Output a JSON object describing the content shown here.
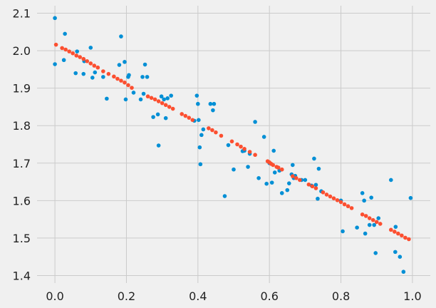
{
  "chart_data": {
    "type": "scatter",
    "title": "",
    "xlabel": "",
    "ylabel": "",
    "xlim": [
      -0.05,
      1.05
    ],
    "ylim": [
      1.38,
      2.12
    ],
    "grid": true,
    "x_ticks": [
      0.0,
      0.2,
      0.4,
      0.6,
      0.8,
      1.0
    ],
    "x_tick_labels": [
      "0.0",
      "0.2",
      "0.4",
      "0.6",
      "0.8",
      "1.0"
    ],
    "y_ticks": [
      1.4,
      1.5,
      1.6,
      1.7,
      1.8,
      1.9,
      2.0,
      2.1
    ],
    "y_tick_labels": [
      "1.4",
      "1.5",
      "1.6",
      "1.7",
      "1.8",
      "1.9",
      "2.0",
      "2.1"
    ],
    "series": [
      {
        "color": "#008fd5",
        "points": [
          [
            0.0,
            2.087
          ],
          [
            0.0,
            1.964
          ],
          [
            0.025,
            1.975
          ],
          [
            0.028,
            2.045
          ],
          [
            0.058,
            1.94
          ],
          [
            0.062,
            1.998
          ],
          [
            0.08,
            1.938
          ],
          [
            0.082,
            1.972
          ],
          [
            0.1,
            2.008
          ],
          [
            0.105,
            1.928
          ],
          [
            0.112,
            1.942
          ],
          [
            0.135,
            1.93
          ],
          [
            0.145,
            1.872
          ],
          [
            0.18,
            1.962
          ],
          [
            0.185,
            2.038
          ],
          [
            0.195,
            1.97
          ],
          [
            0.198,
            1.87
          ],
          [
            0.205,
            1.93
          ],
          [
            0.207,
            1.935
          ],
          [
            0.22,
            1.888
          ],
          [
            0.24,
            1.87
          ],
          [
            0.245,
            1.93
          ],
          [
            0.248,
            1.885
          ],
          [
            0.252,
            1.963
          ],
          [
            0.258,
            1.93
          ],
          [
            0.275,
            1.823
          ],
          [
            0.288,
            1.83
          ],
          [
            0.29,
            1.747
          ],
          [
            0.298,
            1.878
          ],
          [
            0.305,
            1.87
          ],
          [
            0.31,
            1.82
          ],
          [
            0.315,
            1.873
          ],
          [
            0.325,
            1.88
          ],
          [
            0.39,
            1.813
          ],
          [
            0.397,
            1.88
          ],
          [
            0.4,
            1.858
          ],
          [
            0.402,
            1.815
          ],
          [
            0.405,
            1.742
          ],
          [
            0.407,
            1.697
          ],
          [
            0.41,
            1.775
          ],
          [
            0.415,
            1.79
          ],
          [
            0.435,
            1.858
          ],
          [
            0.442,
            1.841
          ],
          [
            0.445,
            1.858
          ],
          [
            0.475,
            1.612
          ],
          [
            0.485,
            1.748
          ],
          [
            0.5,
            1.683
          ],
          [
            0.525,
            1.732
          ],
          [
            0.53,
            1.733
          ],
          [
            0.54,
            1.69
          ],
          [
            0.545,
            1.725
          ],
          [
            0.56,
            1.81
          ],
          [
            0.57,
            1.66
          ],
          [
            0.585,
            1.77
          ],
          [
            0.592,
            1.645
          ],
          [
            0.6,
            1.7
          ],
          [
            0.607,
            1.648
          ],
          [
            0.612,
            1.733
          ],
          [
            0.615,
            1.675
          ],
          [
            0.628,
            1.68
          ],
          [
            0.635,
            1.62
          ],
          [
            0.65,
            1.628
          ],
          [
            0.655,
            1.646
          ],
          [
            0.662,
            1.67
          ],
          [
            0.665,
            1.695
          ],
          [
            0.668,
            1.66
          ],
          [
            0.672,
            1.666
          ],
          [
            0.69,
            1.655
          ],
          [
            0.7,
            1.655
          ],
          [
            0.718,
            1.64
          ],
          [
            0.725,
            1.712
          ],
          [
            0.73,
            1.642
          ],
          [
            0.735,
            1.605
          ],
          [
            0.738,
            1.685
          ],
          [
            0.745,
            1.625
          ],
          [
            0.8,
            1.6
          ],
          [
            0.805,
            1.518
          ],
          [
            0.845,
            1.528
          ],
          [
            0.86,
            1.62
          ],
          [
            0.865,
            1.6
          ],
          [
            0.868,
            1.512
          ],
          [
            0.88,
            1.535
          ],
          [
            0.885,
            1.608
          ],
          [
            0.893,
            1.535
          ],
          [
            0.897,
            1.46
          ],
          [
            0.905,
            1.553
          ],
          [
            0.94,
            1.655
          ],
          [
            0.952,
            1.463
          ],
          [
            0.953,
            1.53
          ],
          [
            0.965,
            1.45
          ],
          [
            0.975,
            1.41
          ],
          [
            0.995,
            1.607
          ]
        ]
      },
      {
        "color": "#fc4f30",
        "points": [
          [
            0.003,
            2.016
          ],
          [
            0.02,
            2.007
          ],
          [
            0.03,
            2.003
          ],
          [
            0.04,
            1.998
          ],
          [
            0.05,
            1.993
          ],
          [
            0.06,
            1.987
          ],
          [
            0.07,
            1.983
          ],
          [
            0.08,
            1.978
          ],
          [
            0.09,
            1.972
          ],
          [
            0.1,
            1.966
          ],
          [
            0.11,
            1.96
          ],
          [
            0.12,
            1.955
          ],
          [
            0.135,
            1.945
          ],
          [
            0.15,
            1.938
          ],
          [
            0.165,
            1.931
          ],
          [
            0.175,
            1.925
          ],
          [
            0.185,
            1.92
          ],
          [
            0.195,
            1.915
          ],
          [
            0.205,
            1.908
          ],
          [
            0.215,
            1.901
          ],
          [
            0.26,
            1.878
          ],
          [
            0.27,
            1.874
          ],
          [
            0.28,
            1.87
          ],
          [
            0.29,
            1.865
          ],
          [
            0.3,
            1.86
          ],
          [
            0.31,
            1.855
          ],
          [
            0.32,
            1.85
          ],
          [
            0.33,
            1.845
          ],
          [
            0.355,
            1.831
          ],
          [
            0.365,
            1.826
          ],
          [
            0.375,
            1.821
          ],
          [
            0.385,
            1.815
          ],
          [
            0.43,
            1.793
          ],
          [
            0.44,
            1.788
          ],
          [
            0.45,
            1.782
          ],
          [
            0.465,
            1.773
          ],
          [
            0.495,
            1.758
          ],
          [
            0.51,
            1.75
          ],
          [
            0.52,
            1.744
          ],
          [
            0.53,
            1.738
          ],
          [
            0.545,
            1.73
          ],
          [
            0.56,
            1.722
          ],
          [
            0.595,
            1.705
          ],
          [
            0.6,
            1.702
          ],
          [
            0.605,
            1.698
          ],
          [
            0.61,
            1.695
          ],
          [
            0.62,
            1.69
          ],
          [
            0.625,
            1.688
          ],
          [
            0.635,
            1.683
          ],
          [
            0.665,
            1.665
          ],
          [
            0.675,
            1.66
          ],
          [
            0.685,
            1.655
          ],
          [
            0.71,
            1.643
          ],
          [
            0.72,
            1.638
          ],
          [
            0.73,
            1.633
          ],
          [
            0.75,
            1.622
          ],
          [
            0.76,
            1.616
          ],
          [
            0.77,
            1.611
          ],
          [
            0.78,
            1.606
          ],
          [
            0.79,
            1.601
          ],
          [
            0.8,
            1.596
          ],
          [
            0.81,
            1.59
          ],
          [
            0.82,
            1.585
          ],
          [
            0.83,
            1.58
          ],
          [
            0.86,
            1.563
          ],
          [
            0.87,
            1.559
          ],
          [
            0.88,
            1.553
          ],
          [
            0.89,
            1.548
          ],
          [
            0.9,
            1.543
          ],
          [
            0.91,
            1.538
          ],
          [
            0.94,
            1.522
          ],
          [
            0.95,
            1.517
          ],
          [
            0.96,
            1.512
          ],
          [
            0.97,
            1.507
          ],
          [
            0.98,
            1.501
          ],
          [
            0.99,
            1.497
          ]
        ]
      }
    ]
  }
}
